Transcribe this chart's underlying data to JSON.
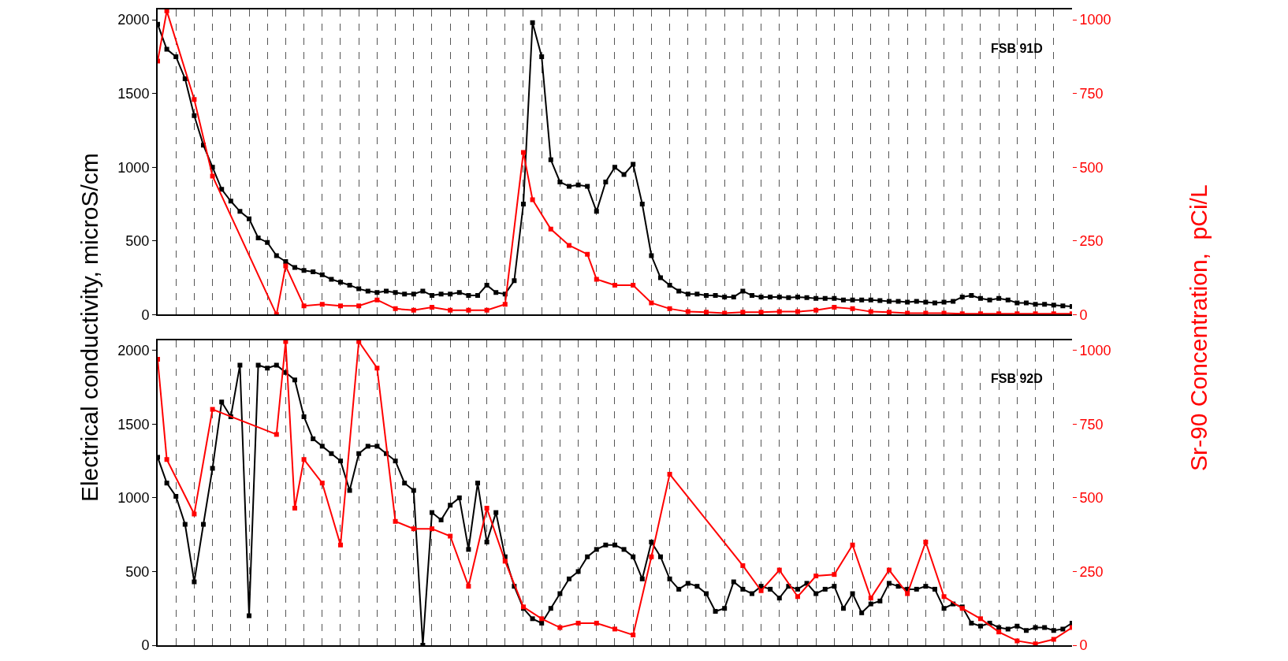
{
  "chart_data": [
    {
      "type": "line",
      "categories": [
        null,
        null,
        null,
        null,
        null,
        null,
        null,
        null,
        null,
        null,
        null,
        null,
        null,
        null,
        null,
        null,
        null,
        null,
        null,
        null,
        null,
        null,
        null,
        null,
        null,
        null,
        null,
        null,
        null,
        null,
        null,
        null,
        null,
        null,
        null,
        null,
        null,
        null,
        null,
        null,
        null,
        null,
        null,
        null,
        null,
        null,
        null,
        null,
        null,
        null,
        null,
        null,
        null,
        null,
        null,
        null,
        null,
        null,
        null,
        null,
        null,
        null,
        null,
        null,
        null,
        null,
        null,
        null,
        null,
        null,
        null,
        null,
        null,
        null,
        null,
        null,
        null,
        null,
        null,
        null,
        null,
        null,
        null,
        null,
        null,
        null,
        null,
        null,
        null,
        null,
        null,
        null,
        null,
        null,
        null,
        null,
        null,
        null,
        null,
        null,
        null
      ],
      "ylabel": "Electrical conductivity, microS/cm",
      "y2label": "Sr-90 Concentration,  pCi/L",
      "annotations": [
        "FSB 91D"
      ],
      "ylim": [
        0,
        2070
      ],
      "yticks": [
        0,
        500,
        1000,
        1500,
        2000
      ],
      "y2lim": [
        0,
        1035
      ],
      "y2ticks": [
        0,
        250,
        500,
        750,
        1000
      ],
      "grid": "x",
      "marker": "square",
      "line_style": "solid",
      "series": [
        {
          "color": "#000000",
          "values": [
            1970,
            1800,
            1750,
            1600,
            1350,
            1150,
            1000,
            850,
            770,
            700,
            650,
            520,
            490,
            400,
            360,
            320,
            300,
            290,
            270,
            240,
            220,
            200,
            175,
            160,
            150,
            160,
            150,
            140,
            140,
            160,
            130,
            140,
            140,
            150,
            130,
            130,
            200,
            150,
            140,
            230,
            750,
            1980,
            1750,
            1050,
            900,
            870,
            880,
            870,
            700,
            900,
            1000,
            950,
            1020,
            750,
            400,
            250,
            200,
            160,
            140,
            140,
            130,
            130,
            120,
            120,
            160,
            130,
            120,
            120,
            120,
            115,
            120,
            115,
            110,
            110,
            110,
            100,
            100,
            100,
            100,
            95,
            90,
            90,
            85,
            90,
            85,
            80,
            85,
            90,
            120,
            130,
            110,
            100,
            110,
            100,
            80,
            80,
            70,
            70,
            65,
            60,
            55
          ]
        },
        {
          "color": "#ff0000",
          "axis": "y2",
          "values": [
            860,
            1030,
            null,
            null,
            730,
            null,
            470,
            null,
            null,
            null,
            null,
            null,
            null,
            0,
            165,
            null,
            30,
            null,
            35,
            null,
            30,
            null,
            30,
            null,
            50,
            null,
            20,
            null,
            15,
            null,
            25,
            null,
            15,
            null,
            15,
            null,
            15,
            null,
            35,
            null,
            550,
            390,
            null,
            290,
            null,
            235,
            null,
            205,
            120,
            null,
            100,
            null,
            100,
            null,
            40,
            null,
            20,
            null,
            10,
            null,
            8,
            null,
            5,
            null,
            8,
            null,
            8,
            null,
            10,
            null,
            10,
            null,
            15,
            null,
            25,
            null,
            20,
            null,
            10,
            null,
            8,
            null,
            5,
            null,
            5,
            null,
            5,
            null,
            3,
            null,
            3,
            null,
            3,
            null,
            3,
            null,
            3,
            null,
            3,
            null,
            3
          ]
        }
      ]
    },
    {
      "type": "line",
      "categories": [
        null,
        null,
        null,
        null,
        null,
        null,
        null,
        null,
        null,
        null,
        null,
        null,
        null,
        null,
        null,
        null,
        null,
        null,
        null,
        null,
        null,
        null,
        null,
        null,
        null,
        null,
        null,
        null,
        null,
        null,
        null,
        null,
        null,
        null,
        null,
        null,
        null,
        null,
        null,
        null,
        null,
        null,
        null,
        null,
        null,
        null,
        null,
        null,
        null,
        null,
        null,
        null,
        null,
        null,
        null,
        null,
        null,
        null,
        null,
        null,
        null,
        null,
        null,
        null,
        null,
        null,
        null,
        null,
        null,
        null,
        null,
        null,
        null,
        null,
        null,
        null,
        null,
        null,
        null,
        null,
        null,
        null,
        null,
        null,
        null,
        null,
        null,
        null,
        null,
        null,
        null,
        null,
        null,
        null,
        null,
        null,
        null,
        null,
        null,
        null,
        null
      ],
      "annotations": [
        "FSB 92D"
      ],
      "ylim": [
        0,
        2070
      ],
      "yticks": [
        0,
        500,
        1000,
        1500,
        2000
      ],
      "y2lim": [
        0,
        1035
      ],
      "y2ticks": [
        0,
        250,
        500,
        750,
        1000
      ],
      "grid": "x",
      "marker": "square",
      "line_style": "solid",
      "series": [
        {
          "color": "#000000",
          "values": [
            1275,
            1100,
            1010,
            820,
            430,
            820,
            1200,
            1650,
            1550,
            1900,
            200,
            1900,
            1880,
            1900,
            1850,
            1800,
            1550,
            1400,
            1350,
            1300,
            1250,
            1050,
            1300,
            1350,
            1350,
            1300,
            1250,
            1100,
            1050,
            0,
            900,
            850,
            950,
            1000,
            650,
            1100,
            700,
            900,
            600,
            400,
            250,
            180,
            150,
            250,
            350,
            450,
            500,
            600,
            650,
            680,
            680,
            650,
            600,
            450,
            700,
            600,
            450,
            380,
            420,
            400,
            350,
            230,
            250,
            430,
            380,
            350,
            400,
            380,
            320,
            400,
            380,
            420,
            350,
            380,
            400,
            250,
            350,
            220,
            280,
            300,
            420,
            400,
            380,
            380,
            400,
            380,
            250,
            280,
            260,
            150,
            130,
            150,
            120,
            110,
            130,
            100,
            120,
            120,
            100,
            110,
            150
          ]
        },
        {
          "color": "#ff0000",
          "axis": "y2",
          "values": [
            970,
            630,
            null,
            null,
            445,
            null,
            800,
            null,
            null,
            null,
            null,
            null,
            null,
            715,
            1030,
            465,
            630,
            null,
            550,
            null,
            340,
            null,
            1030,
            null,
            940,
            null,
            420,
            null,
            395,
            null,
            395,
            null,
            370,
            null,
            200,
            null,
            465,
            null,
            285,
            null,
            130,
            null,
            90,
            null,
            60,
            null,
            75,
            null,
            75,
            null,
            55,
            null,
            35,
            null,
            300,
            null,
            580,
            null,
            null,
            null,
            null,
            null,
            null,
            null,
            270,
            null,
            185,
            null,
            255,
            null,
            165,
            null,
            235,
            null,
            240,
            null,
            340,
            null,
            160,
            null,
            255,
            null,
            175,
            null,
            350,
            null,
            165,
            null,
            125,
            null,
            90,
            null,
            45,
            null,
            15,
            null,
            5,
            null,
            20,
            null,
            60
          ]
        }
      ]
    }
  ]
}
